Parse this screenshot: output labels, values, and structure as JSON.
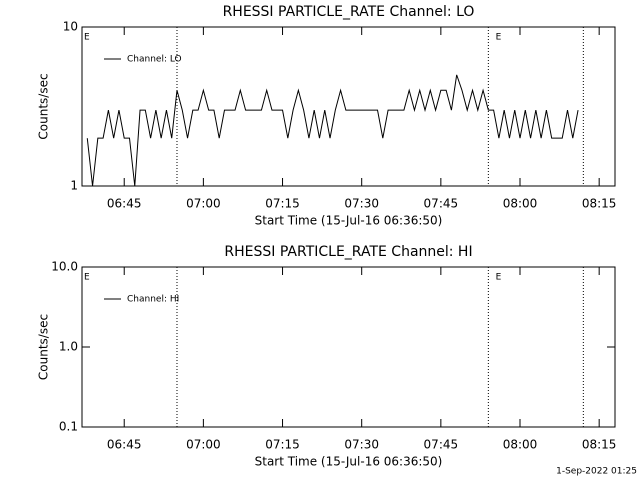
{
  "chart_data": [
    {
      "type": "line",
      "title": "RHESSI PARTICLE_RATE Channel: LO",
      "xlabel": "Start Time (15-Jul-16 06:36:50)",
      "ylabel": "Counts/sec",
      "log_y": true,
      "legend": "upper left",
      "xlim": [
        "06:37",
        "08:18"
      ],
      "xticks": [
        "06:45",
        "07:00",
        "07:15",
        "07:30",
        "07:45",
        "08:00",
        "08:15"
      ],
      "ylim": [
        1,
        10
      ],
      "yticks": [
        10,
        1
      ],
      "vlines": [
        "06:55",
        "07:54",
        "08:12"
      ],
      "annotations": [
        {
          "text": "E",
          "x": "06:37"
        },
        {
          "text": "E",
          "x": "07:55"
        }
      ],
      "x": [
        "06:38",
        "06:39",
        "06:40",
        "06:41",
        "06:42",
        "06:43",
        "06:44",
        "06:45",
        "06:46",
        "06:47",
        "06:48",
        "06:49",
        "06:50",
        "06:51",
        "06:52",
        "06:53",
        "06:54",
        "06:55",
        "06:56",
        "06:57",
        "06:58",
        "06:59",
        "07:00",
        "07:01",
        "07:02",
        "07:03",
        "07:04",
        "07:05",
        "07:06",
        "07:07",
        "07:08",
        "07:09",
        "07:10",
        "07:11",
        "07:12",
        "07:13",
        "07:14",
        "07:15",
        "07:16",
        "07:17",
        "07:18",
        "07:19",
        "07:20",
        "07:21",
        "07:22",
        "07:23",
        "07:24",
        "07:25",
        "07:26",
        "07:27",
        "07:28",
        "07:29",
        "07:30",
        "07:31",
        "07:32",
        "07:33",
        "07:34",
        "07:35",
        "07:36",
        "07:37",
        "07:38",
        "07:39",
        "07:40",
        "07:41",
        "07:42",
        "07:43",
        "07:44",
        "07:45",
        "07:46",
        "07:47",
        "07:48",
        "07:49",
        "07:50",
        "07:51",
        "07:52",
        "07:53",
        "07:54",
        "07:55",
        "07:56",
        "07:57",
        "07:58",
        "07:59",
        "08:00",
        "08:01",
        "08:02",
        "08:03",
        "08:04",
        "08:05",
        "08:06",
        "08:07",
        "08:08",
        "08:09",
        "08:10",
        "08:11"
      ],
      "series": [
        {
          "name": "Channel: LO",
          "color": "#000000",
          "values": [
            2,
            1,
            2,
            2,
            3,
            2,
            3,
            2,
            2,
            1,
            3,
            3,
            2,
            3,
            2,
            3,
            2,
            4,
            3,
            2,
            3,
            3,
            4,
            3,
            3,
            2,
            3,
            3,
            3,
            4,
            3,
            3,
            3,
            3,
            4,
            3,
            3,
            3,
            2,
            3,
            4,
            3,
            2,
            3,
            2,
            3,
            2,
            3,
            4,
            3,
            3,
            3,
            3,
            3,
            3,
            3,
            2,
            3,
            3,
            3,
            3,
            4,
            3,
            4,
            3,
            4,
            3,
            4,
            4,
            3,
            5,
            4,
            3,
            4,
            3,
            4,
            3,
            3,
            2,
            3,
            2,
            3,
            2,
            3,
            2,
            3,
            2,
            3,
            2,
            2,
            2,
            3,
            2,
            3
          ]
        }
      ]
    },
    {
      "type": "line",
      "title": "RHESSI PARTICLE_RATE Channel: HI",
      "xlabel": "Start Time (15-Jul-16 06:36:50)",
      "ylabel": "Counts/sec",
      "log_y": true,
      "legend": "upper left",
      "xlim": [
        "06:37",
        "08:18"
      ],
      "xticks": [
        "06:45",
        "07:00",
        "07:15",
        "07:30",
        "07:45",
        "08:00",
        "08:15"
      ],
      "ylim": [
        0.1,
        10
      ],
      "yticks": [
        {
          "value": 10,
          "label": "10.0"
        },
        {
          "value": 1,
          "label": "1.0"
        },
        0.1
      ],
      "vlines": [
        "06:55",
        "07:54",
        "08:12"
      ],
      "annotations": [
        {
          "text": "E",
          "x": "06:37"
        },
        {
          "text": "E",
          "x": "07:55"
        }
      ],
      "x": [],
      "series": [
        {
          "name": "Channel: HI",
          "color": "#000000",
          "values": []
        }
      ]
    }
  ],
  "footer": "1-Sep-2022 01:25"
}
